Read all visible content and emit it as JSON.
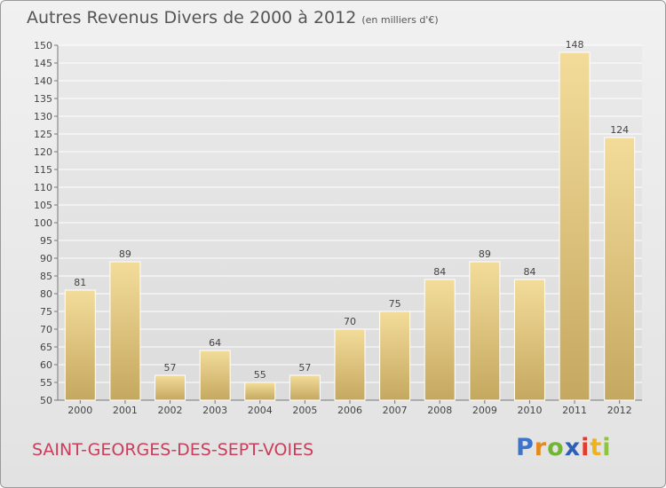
{
  "header": {
    "title": "Autres Revenus Divers de 2000 à 2012",
    "unit": "(en milliers d'€)"
  },
  "footer": {
    "town": "SAINT-GEORGES-DES-SEPT-VOIES",
    "logo": "Proxiti"
  },
  "colors": {
    "bar_light": "#f3dc9a",
    "bar_dark": "#c5a860",
    "grid": "#ffffff",
    "axis_text": "#444444",
    "town_text": "#cc3d5b"
  },
  "chart_data": {
    "type": "bar",
    "title": "Autres Revenus Divers de 2000 à 2012",
    "subtitle": "(en milliers d'€)",
    "categories": [
      "2000",
      "2001",
      "2002",
      "2003",
      "2004",
      "2005",
      "2006",
      "2007",
      "2008",
      "2009",
      "2010",
      "2011",
      "2012"
    ],
    "values": [
      81,
      89,
      57,
      64,
      55,
      57,
      70,
      75,
      84,
      89,
      84,
      148,
      124
    ],
    "ylim": [
      50,
      150
    ],
    "yticks": [
      50,
      55,
      60,
      65,
      70,
      75,
      80,
      85,
      90,
      95,
      100,
      105,
      110,
      115,
      120,
      125,
      130,
      135,
      140,
      145,
      150
    ],
    "grid": true,
    "data_labels": true
  }
}
